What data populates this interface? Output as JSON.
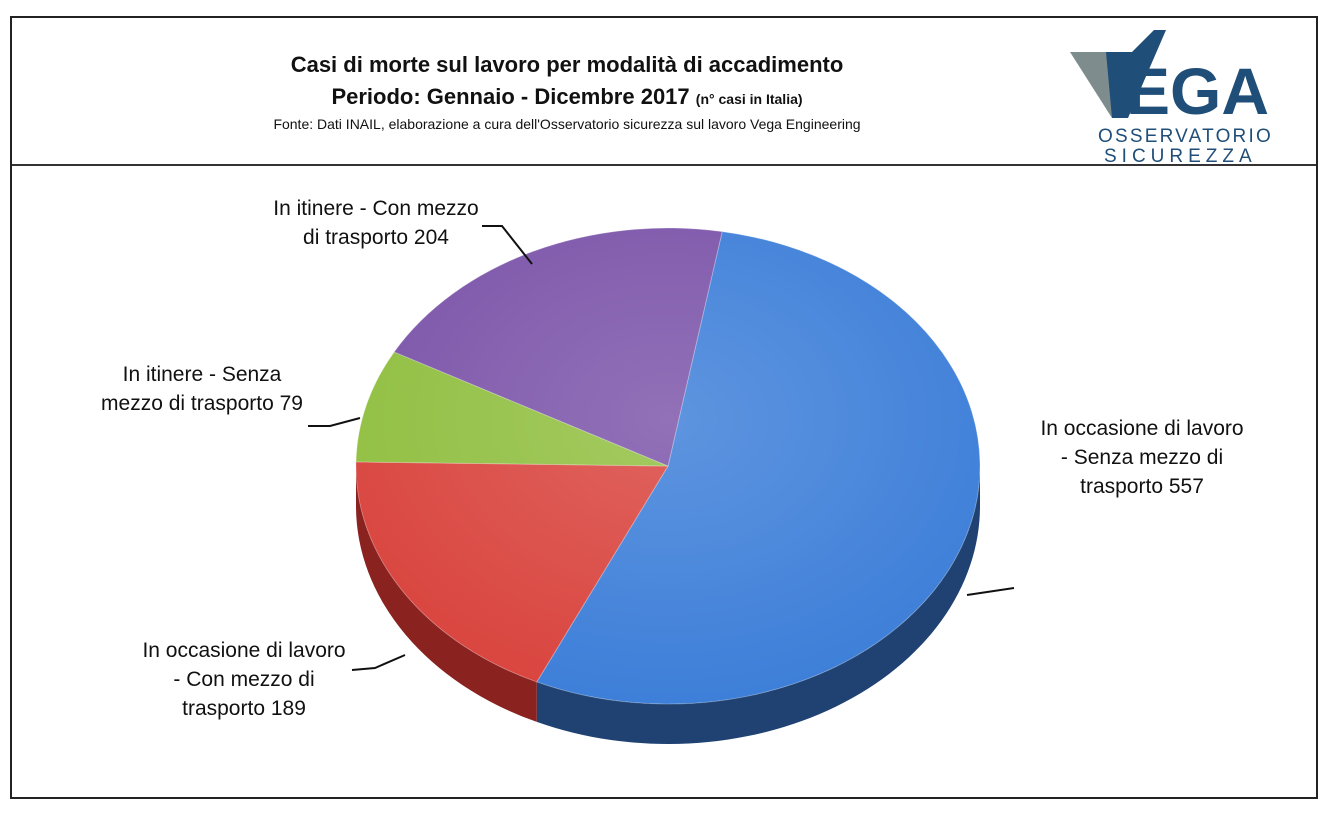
{
  "header": {
    "title_line1": "Casi di morte sul lavoro per modalità di accadimento",
    "title_line2": "Periodo: Gennaio - Dicembre 2017",
    "title_line2_small": "(n° casi in Italia)",
    "source": "Fonte: Dati INAIL, elaborazione a cura dell'Osservatorio sicurezza sul lavoro Vega Engineering"
  },
  "logo": {
    "brand": "VEGA",
    "line1": "OSSERVATORIO",
    "line2": "SICUREZZA",
    "color_dark": "#1f4e79",
    "color_grey": "#7f8c8d"
  },
  "chart_data": {
    "type": "pie",
    "title": "Casi di morte sul lavoro per modalità di accadimento",
    "series": [
      {
        "name": "",
        "values": [
          557,
          189,
          79,
          204
        ]
      }
    ],
    "categories": [
      "In occasione di lavoro - Senza mezzo di trasporto",
      "In occasione di lavoro - Con mezzo di trasporto",
      "In itinere - Senza mezzo di trasporto",
      "In itinere - Con mezzo di trasporto"
    ],
    "label_lines": [
      [
        "In occasione di lavoro",
        "- Senza mezzo di",
        "trasporto 557"
      ],
      [
        "In occasione di lavoro",
        "- Con mezzo di",
        "trasporto 189"
      ],
      [
        "In itinere - Senza",
        "mezzo di trasporto 79"
      ],
      [
        "In itinere - Con mezzo",
        "di trasporto 204"
      ]
    ],
    "colors": [
      "#3b7dd8",
      "#d9423c",
      "#8fbe3e",
      "#7a52a8"
    ],
    "side_colors": [
      "#1f4273",
      "#8a2220",
      "#56772a",
      "#4b3170"
    ],
    "legend": "none"
  }
}
